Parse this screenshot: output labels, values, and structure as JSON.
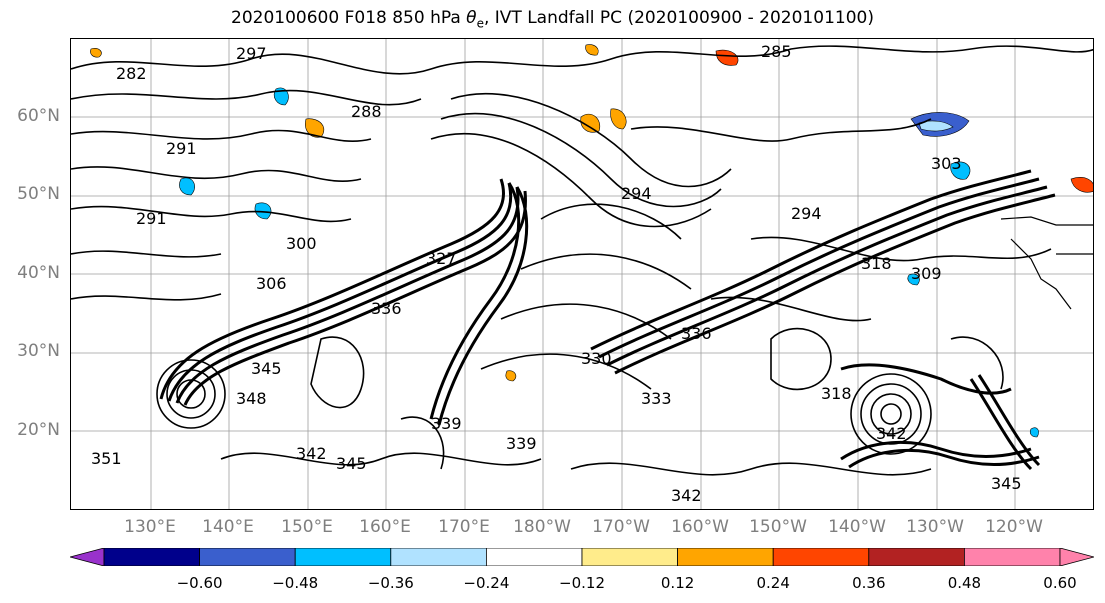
{
  "title_prefix": "2020100600 F018 850 hPa ",
  "title_symbol": "θ",
  "title_subscript": "e",
  "title_suffix": ", IVT Landfall PC (2020100900 - 2020101100)",
  "lat_labels": [
    "60°N",
    "50°N",
    "40°N",
    "30°N",
    "20°N"
  ],
  "lon_labels": [
    "130°E",
    "140°E",
    "150°E",
    "160°E",
    "170°E",
    "180°W",
    "170°W",
    "160°W",
    "150°W",
    "140°W",
    "130°W",
    "120°W"
  ],
  "contour_labels": [
    "282",
    "285",
    "288",
    "291",
    "291",
    "294",
    "294",
    "297",
    "300",
    "303",
    "306",
    "309",
    "318",
    "318",
    "327",
    "330",
    "333",
    "336",
    "336",
    "339",
    "339",
    "342",
    "342",
    "342",
    "345",
    "345",
    "345",
    "348",
    "351"
  ],
  "colorbar": {
    "ticks": [
      "−0.60",
      "−0.48",
      "−0.36",
      "−0.24",
      "−0.12",
      "0.12",
      "0.24",
      "0.36",
      "0.48",
      "0.60"
    ],
    "colors": [
      "#9932cc",
      "#00008b",
      "#3a5fcd",
      "#00bfff",
      "#b0e2ff",
      "#ffffff",
      "#ffec8b",
      "#ffa500",
      "#ff4500",
      "#b22222",
      "#ff82ab",
      "#ff82ab"
    ]
  },
  "colors": {
    "contour": "#000000",
    "grid": "#9e9e9e",
    "axis_label": "#7f7f7f"
  }
}
